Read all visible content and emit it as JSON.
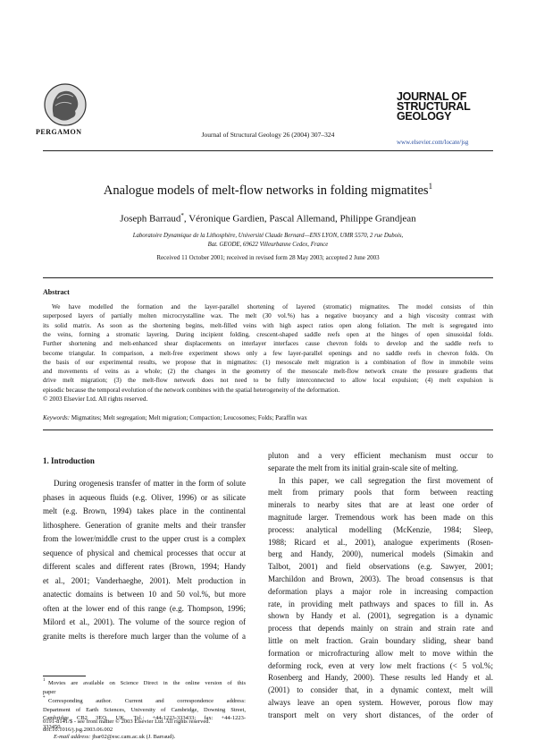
{
  "header": {
    "publisher": "PERGAMON",
    "citation": "Journal of Structural Geology 26 (2004) 307–324",
    "journal_logo": [
      "JOURNAL OF",
      "STRUCTURAL",
      "GEOLOGY"
    ],
    "url": "www.elsevier.com/locate/jsg"
  },
  "article": {
    "title": "Analogue models of melt-flow networks in folding migmatites",
    "title_note": "1",
    "authors": "Joseph Barraud",
    "author_note": "*",
    "coauthors": ", Véronique Gardien, Pascal Allemand, Philippe Grandjean",
    "affiliation": [
      "Laboratoire Dynamique de la Lithosphère, Université Claude Bernard—ENS LYON, UMR 5570, 2 rue Dubois,",
      "Bat. GEODE, 69622 Villeurbanne Cedex, France"
    ],
    "dates": "Received 11 October 2001; received in revised form 28 May 2003; accepted 2 June 2003"
  },
  "abstract": {
    "heading": "Abstract",
    "lines": [
      "We have modelled the formation and the layer-parallel shortening of layered (stromatic) migmatites. The model consists of thin",
      "superposed layers of partially molten microcrystalline wax. The melt (30 vol.%) has a negative buoyancy and a high viscosity contrast with",
      "its solid matrix. As soon as the shortening begins, melt-filled veins with high aspect ratios open along foliation. The melt is segregated into",
      "the veins, forming a stromatic layering. During incipient folding, crescent-shaped saddle reefs open at the hinges of open sinusoidal folds.",
      "Further shortening and melt-enhanced shear displacements on interlayer interfaces cause chevron folds to develop and the saddle reefs to",
      "become triangular. In comparison, a melt-free experiment shows only a few layer-parallel openings and no saddle reefs in chevron folds. On",
      "the basis of our experimental results, we propose that in migmatites: (1) mesoscale melt migration is a combination of flow in immobile veins",
      "and movements of veins as a whole; (2) the changes in the geometry of the mesoscale melt-flow network create the pressure gradients that",
      "drive melt migration; (3) the melt-flow network does not need to be fully interconnected to allow local expulsion; (4) melt expulsion is",
      "episodic because the temporal evolution of the network combines with the spatial heterogeneity of the deformation."
    ],
    "copyright": "© 2003 Elsevier Ltd. All rights reserved.",
    "keywords_label": "Keywords:",
    "keywords": "Migmatites; Melt segregation; Melt migration; Compaction; Leucosomes; Folds; Paraffin wax"
  },
  "left_column": {
    "heading": "1. Introduction",
    "lines": [
      "During orogenesis transfer of matter in the form of solute",
      "phases in aqueous fluids (e.g. Oliver, 1996) or as silicate",
      "melt (e.g. Brown, 1994) takes place in the continental",
      "lithosphere. Generation of granite melts and their transfer",
      "from the lower/middle crust to the upper crust is a complex",
      "sequence of physical and chemical processes that occur at",
      "different scales and different rates (Brown, 1994; Handy",
      "et al., 2001; Vanderhaeghe, 2001). Melt production in",
      "anatectic domains is between 10 and 50 vol.%, but more",
      "often at the lower end of this range (e.g. Thompson, 1996;",
      "Milord et al., 2001). The volume of the source region of",
      "granite melts is therefore much larger than the volume of a"
    ]
  },
  "right_column": {
    "paragraphs": [
      [
        "pluton and a very efficient mechanism must occur to",
        "separate the melt from its initial grain-scale site of melting."
      ],
      [
        "In this paper, we call segregation the first movement of",
        "melt from primary pools that form between reacting",
        "minerals to nearby sites that are at least one order of",
        "magnitude larger. Tremendous work has been made on this",
        "process: analytical modelling (McKenzie, 1984; Sleep,",
        "1988; Ricard et al., 2001), analogue experiments (Rosen-",
        "berg and Handy, 2000), numerical models (Simakin and",
        "Talbot, 2001) and field observations (e.g. Sawyer, 2001;",
        "Marchildon and Brown, 2003). The broad consensus is that",
        "deformation plays a major role in increasing compaction",
        "rate, in providing melt pathways and spaces to fill in. As",
        "shown by Handy et al. (2001), segregation is a dynamic",
        "process that depends mainly on strain and strain rate and",
        "little on melt fraction. Grain boundary sliding, shear band",
        "formation or microfracturing allow melt to move within the",
        "deforming rock, even at very low melt fractions (< 5 vol.%;",
        "Rosenberg and Handy, 2000). These results led Handy et al.",
        "(2001) to consider that, in a dynamic context, melt will",
        "always leave an open system. However, porous flow may",
        "transport melt on very short distances, of the order of"
      ]
    ]
  },
  "footnotes": [
    {
      "mark": "1",
      "lines": [
        "Movies are available on Science Direct in the online version of this",
        "paper"
      ]
    },
    {
      "mark": "*",
      "lines": [
        "Corresponding author. Current and correspondence address:",
        "Department of Earth Sciences, University of Cambridge, Downing Street,",
        "Cambridge CB2 3EQ, UK. Tel.: +44-1223-333433; fax: +44-1223-",
        "333450."
      ]
    }
  ],
  "email": {
    "label": "E-mail address:",
    "text": "jbar02@esc.cam.ac.uk (J. Barraud)."
  },
  "footer": {
    "lines": [
      "0191-8141/$ - see front matter © 2003 Elsevier Ltd. All rights reserved.",
      "doi:10.1016/j.jsg.2003.06.002"
    ]
  }
}
